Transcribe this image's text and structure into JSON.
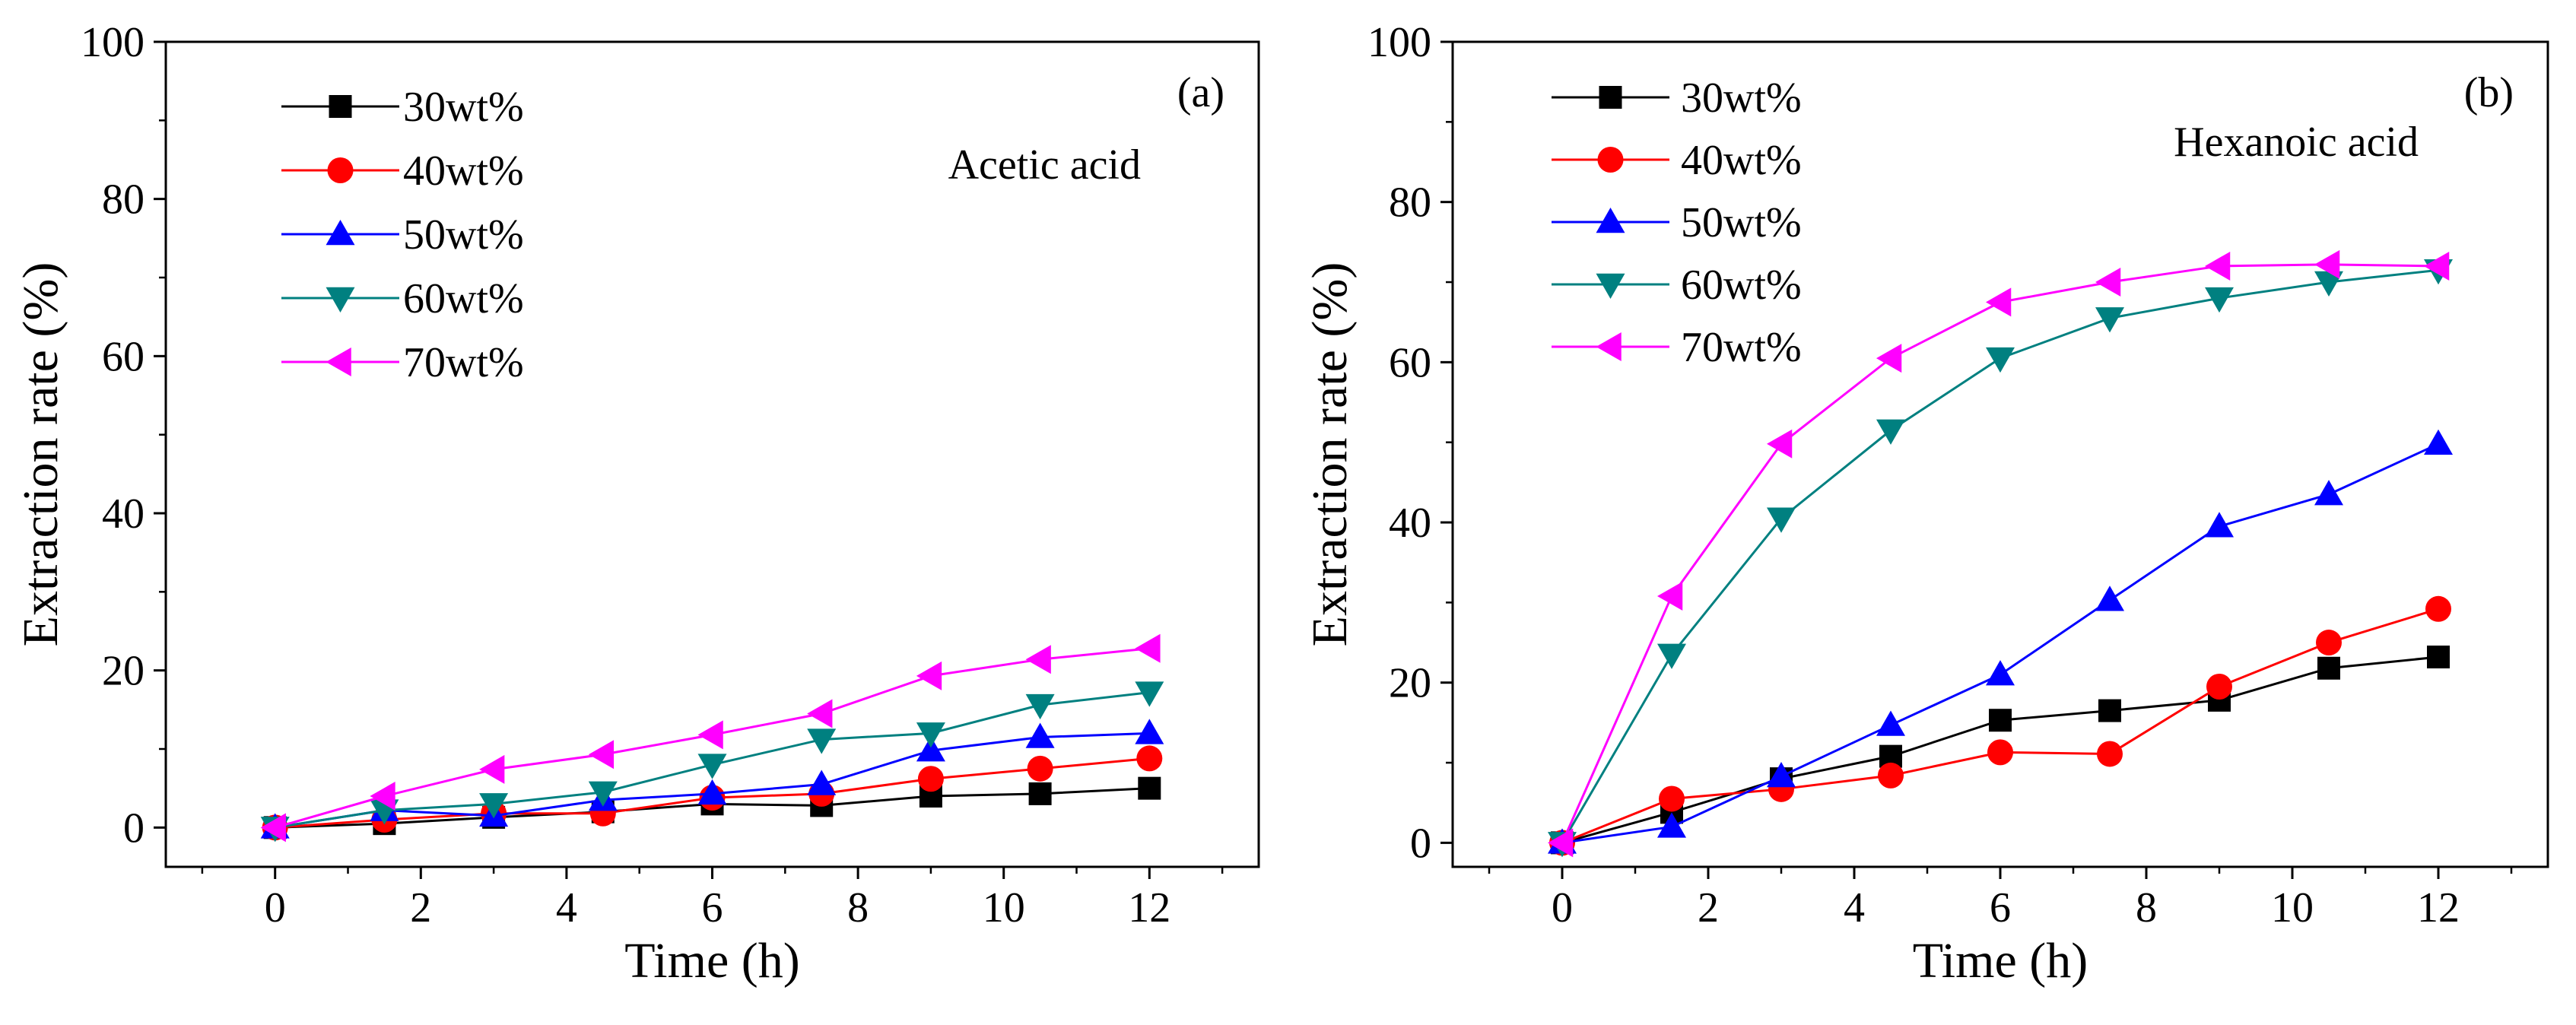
{
  "chart_data": [
    {
      "type": "line",
      "panel_label": "(a)",
      "annotation": "Acetic acid",
      "xlabel": "Time (h)",
      "ylabel": "Extraction rate (%)",
      "xlim": [
        -1.5,
        13.5
      ],
      "ylim": [
        -5,
        100
      ],
      "xticks": [
        0,
        2,
        4,
        6,
        8,
        10,
        12
      ],
      "yticks": [
        0,
        20,
        40,
        60,
        80,
        100
      ],
      "x": [
        0,
        1.5,
        3,
        4.5,
        6,
        7.5,
        9,
        10.5,
        12
      ],
      "legend_position": "top-left",
      "series": [
        {
          "name": "30wt%",
          "color": "#000000",
          "marker": "square",
          "values": [
            0,
            0.5,
            1.3,
            2.0,
            3.0,
            2.8,
            4.0,
            4.3,
            5.0
          ]
        },
        {
          "name": "40wt%",
          "color": "#ff0000",
          "marker": "circle",
          "values": [
            0,
            1.0,
            1.8,
            1.8,
            3.8,
            4.3,
            6.2,
            7.5,
            8.8
          ]
        },
        {
          "name": "50wt%",
          "color": "#0000ff",
          "marker": "triangle-up",
          "values": [
            0,
            2.2,
            1.5,
            3.5,
            4.3,
            5.5,
            9.8,
            11.5,
            12.0
          ]
        },
        {
          "name": "60wt%",
          "color": "#008080",
          "marker": "triangle-down",
          "values": [
            0,
            2.2,
            3.0,
            4.5,
            8.0,
            11.2,
            12.0,
            15.6,
            17.2
          ]
        },
        {
          "name": "70wt%",
          "color": "#ff00ff",
          "marker": "triangle-left",
          "values": [
            0,
            4.0,
            7.4,
            9.3,
            11.8,
            14.5,
            19.3,
            21.4,
            22.8
          ]
        }
      ]
    },
    {
      "type": "line",
      "panel_label": "(b)",
      "annotation": "Hexanoic acid",
      "xlabel": "Time (h)",
      "ylabel": "Extraction rate (%)",
      "xlim": [
        -1.5,
        13.5
      ],
      "ylim": [
        -3,
        100
      ],
      "xticks": [
        0,
        2,
        4,
        6,
        8,
        10,
        12
      ],
      "yticks": [
        0,
        20,
        40,
        60,
        80,
        100
      ],
      "x": [
        0,
        1.5,
        3,
        4.5,
        6,
        7.5,
        9,
        10.5,
        12
      ],
      "legend_position": "top-left",
      "series": [
        {
          "name": "30wt%",
          "color": "#000000",
          "marker": "square",
          "values": [
            0,
            3.8,
            8.0,
            10.8,
            15.3,
            16.5,
            17.8,
            21.8,
            23.2
          ]
        },
        {
          "name": "40wt%",
          "color": "#ff0000",
          "marker": "circle",
          "values": [
            0,
            5.5,
            6.7,
            8.4,
            11.3,
            11.1,
            19.5,
            25.0,
            29.2
          ]
        },
        {
          "name": "50wt%",
          "color": "#0000ff",
          "marker": "triangle-up",
          "values": [
            0,
            2.0,
            8.3,
            14.7,
            21.0,
            30.3,
            39.5,
            43.5,
            49.8
          ]
        },
        {
          "name": "60wt%",
          "color": "#008080",
          "marker": "triangle-down",
          "values": [
            0,
            23.5,
            40.5,
            51.5,
            60.5,
            65.5,
            68.0,
            70.0,
            71.5
          ]
        },
        {
          "name": "70wt%",
          "color": "#ff00ff",
          "marker": "triangle-left",
          "values": [
            0,
            30.8,
            49.8,
            60.5,
            67.5,
            70.0,
            72.0,
            72.2,
            72.0
          ]
        }
      ]
    }
  ]
}
